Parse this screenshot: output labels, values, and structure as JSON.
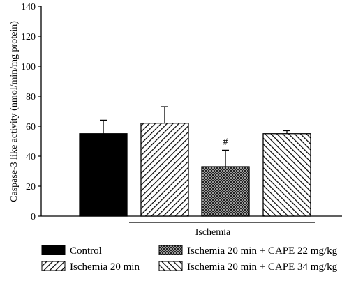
{
  "chart_data": {
    "type": "bar",
    "title": "",
    "ylabel": "Caspase-3 like activity (nmol/min/mg protein)",
    "xlabel": "",
    "ylim": [
      0,
      140
    ],
    "yticks": [
      0,
      20,
      40,
      60,
      80,
      100,
      120,
      140
    ],
    "grid": false,
    "bracket_label": "Ischemia",
    "bracket_covers": [
      "Ischemia 20 min",
      "Ischemia 20 min + CAPE 22 mg/kg",
      "Ischemia 20 min + CAPE 34 mg/kg"
    ],
    "legend_position": "bottom",
    "series": [
      {
        "name": "Control",
        "value": 55,
        "error": 9,
        "pattern": "solid",
        "annotation": ""
      },
      {
        "name": "Ischemia 20 min",
        "value": 62,
        "error": 11,
        "pattern": "diagonal-forward",
        "annotation": ""
      },
      {
        "name": "Ischemia 20 min + CAPE 22 mg/kg",
        "value": 33,
        "error": 11,
        "pattern": "crosshatch",
        "annotation": "#"
      },
      {
        "name": "Ischemia 20 min + CAPE 34 mg/kg",
        "value": 55,
        "error": 2,
        "pattern": "diagonal-backward",
        "annotation": ""
      }
    ]
  }
}
